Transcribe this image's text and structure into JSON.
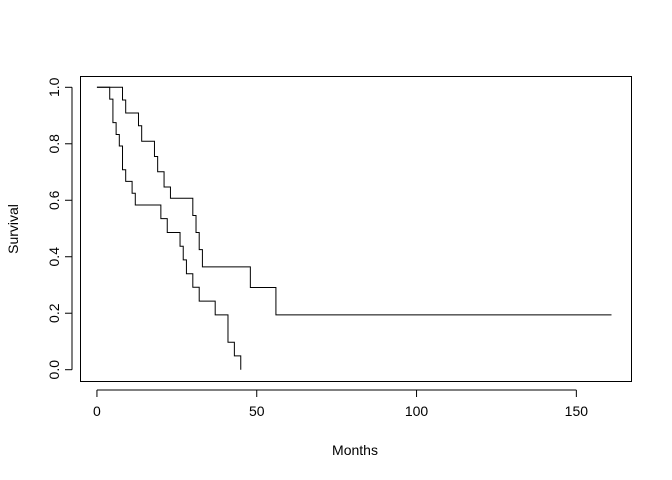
{
  "chart_data": {
    "type": "line",
    "title": "",
    "xlabel": "Months",
    "ylabel": "Survival",
    "xlim": [
      -5.3,
      167.1
    ],
    "ylim": [
      -0.04,
      1.04
    ],
    "x_ticks": [
      0,
      50,
      100,
      150
    ],
    "x_tick_labels": [
      "0",
      "50",
      "100",
      "150"
    ],
    "y_ticks": [
      0.0,
      0.2,
      0.4,
      0.6,
      0.8,
      1.0
    ],
    "y_tick_labels": [
      "0.0",
      "0.2",
      "0.4",
      "0.6",
      "0.8",
      "1.0"
    ],
    "grid": false,
    "line_style": "step",
    "series": [
      {
        "x": [
          0,
          4,
          5,
          6,
          7,
          8,
          9,
          11,
          12,
          20,
          22,
          26,
          27,
          28,
          30,
          32,
          33,
          37,
          41,
          43,
          45,
          45
        ],
        "y": [
          1.0,
          0.958,
          0.875,
          0.833,
          0.792,
          0.708,
          0.667,
          0.625,
          0.583,
          0.535,
          0.486,
          0.437,
          0.389,
          0.34,
          0.292,
          0.243,
          0.243,
          0.194,
          0.097,
          0.049,
          0.049,
          0.0
        ]
      },
      {
        "x": [
          0,
          8,
          9,
          13,
          14,
          18,
          19,
          21,
          23,
          30,
          31,
          32,
          33,
          34,
          48,
          56,
          161
        ],
        "y": [
          1.0,
          0.955,
          0.909,
          0.864,
          0.809,
          0.755,
          0.701,
          0.647,
          0.607,
          0.546,
          0.486,
          0.425,
          0.364,
          0.364,
          0.291,
          0.194,
          0.194
        ]
      }
    ]
  }
}
